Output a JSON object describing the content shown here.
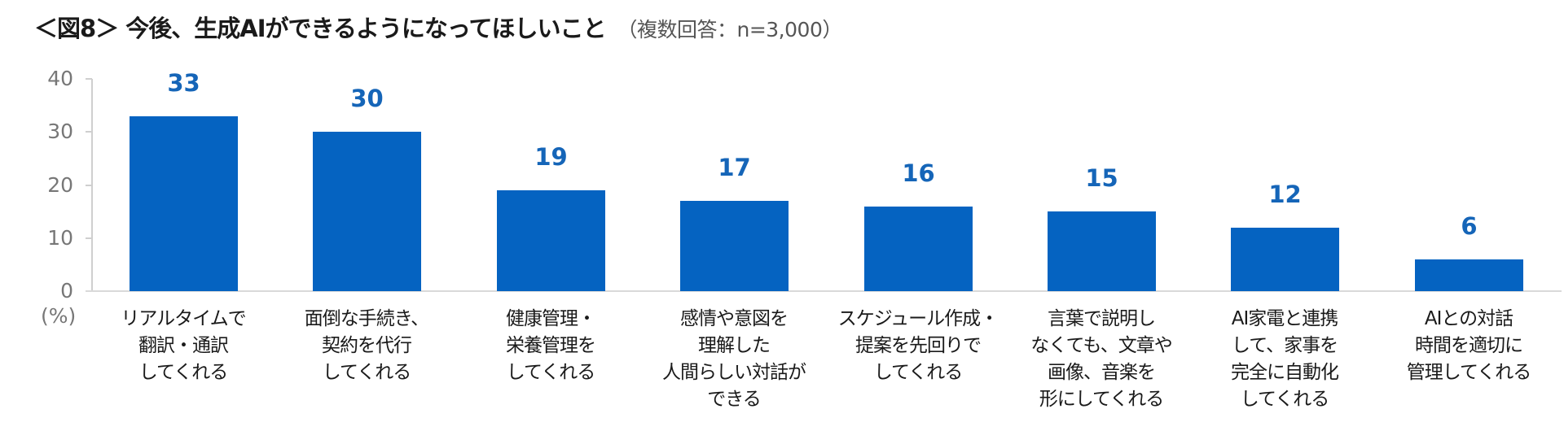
{
  "title": {
    "main": "＜図8＞ 今後、生成AIができるようになってほしいこと",
    "sub": "（複数回答：n=3,000）"
  },
  "colors": {
    "bar": "#0563c1",
    "value_label": "#1565b8",
    "axis": "#d9d9d9",
    "axis_text": "#777777"
  },
  "yaxis": {
    "ticks": [
      "40",
      "30",
      "20",
      "10",
      "0"
    ],
    "unit": "(%)"
  },
  "chart_data": {
    "type": "bar",
    "title": "＜図8＞ 今後、生成AIができるようになってほしいこと（複数回答：n=3,000）",
    "xlabel": "",
    "ylabel": "(%)",
    "ylim": [
      0,
      40
    ],
    "yticks": [
      0,
      10,
      20,
      30,
      40
    ],
    "grid": false,
    "legend": null,
    "categories": [
      "リアルタイムで翻訳・通訳してくれる",
      "面倒な手続き、契約を代行してくれる",
      "健康管理・栄養管理をしてくれる",
      "感情や意図を理解した人間らしい対話ができる",
      "スケジュール作成・提案を先回りでしてくれる",
      "言葉で説明しなくても、文章や画像、音楽を形にしてくれる",
      "AI家電と連携して、家事を完全に自動化してくれる",
      "AIとの対話時間を適切に管理してくれる"
    ],
    "values": [
      33,
      30,
      19,
      17,
      16,
      15,
      12,
      6
    ]
  },
  "bars": [
    {
      "value": "33",
      "lines": [
        "リアルタイムで",
        "翻訳・通訳",
        "してくれる"
      ]
    },
    {
      "value": "30",
      "lines": [
        "面倒な手続き、",
        "契約を代行",
        "してくれる"
      ]
    },
    {
      "value": "19",
      "lines": [
        "健康管理・",
        "栄養管理を",
        "してくれる"
      ]
    },
    {
      "value": "17",
      "lines": [
        "感情や意図を",
        "理解した",
        "人間らしい対話が",
        "できる"
      ]
    },
    {
      "value": "16",
      "lines": [
        "スケジュール作成・",
        "提案を先回りで",
        "してくれる"
      ]
    },
    {
      "value": "15",
      "lines": [
        "言葉で説明し",
        "なくても、文章や",
        "画像、音楽を",
        "形にしてくれる"
      ]
    },
    {
      "value": "12",
      "lines": [
        "AI家電と連携",
        "して、家事を",
        "完全に自動化",
        "してくれる"
      ]
    },
    {
      "value": "6",
      "lines": [
        "AIとの対話",
        "時間を適切に",
        "管理してくれる"
      ]
    }
  ]
}
